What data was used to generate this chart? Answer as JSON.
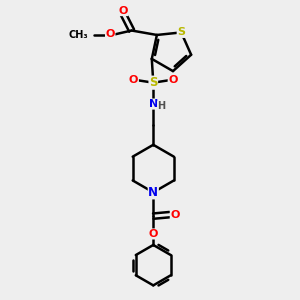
{
  "bg_color": "#eeeeee",
  "bond_color": "#000000",
  "bond_width": 1.8,
  "colors": {
    "S": "#b8b800",
    "O": "#ff0000",
    "N": "#0000ee",
    "C": "#000000"
  },
  "figsize": [
    3.0,
    3.0
  ],
  "dpi": 100
}
